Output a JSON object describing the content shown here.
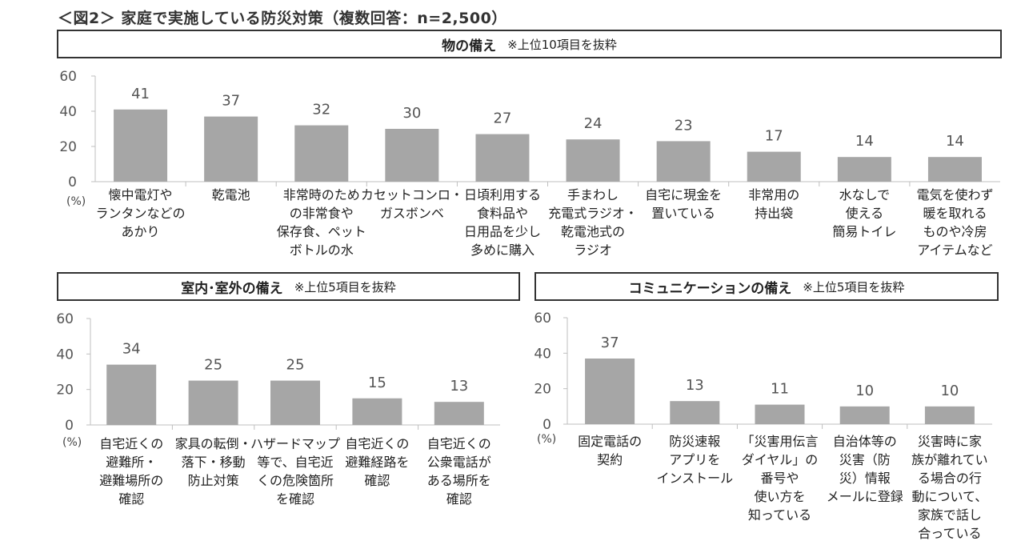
{
  "figure": {
    "title": "＜図2＞ 家庭で実施している防災対策（複数回答：n=2,500）"
  },
  "panels": {
    "main": {
      "title": "物の備え",
      "note": "※上位10項目を抜粋"
    },
    "left": {
      "title": "室内･室外の備え",
      "note": "※上位5項目を抜粋"
    },
    "right": {
      "title": "コミュニケーションの備え",
      "note": "※上位5項目を抜粋"
    }
  },
  "chart_data": [
    {
      "type": "bar",
      "title": "物の備え",
      "unit": "(%)",
      "ylim": [
        0,
        60
      ],
      "yticks": [
        0,
        20,
        40,
        60
      ],
      "categories": [
        [
          "懐中電灯や",
          "ランタンなどの",
          "あかり"
        ],
        [
          "乾電池"
        ],
        [
          "非常時のため",
          "の非常食や",
          "保存食、ペット",
          "ボトルの水"
        ],
        [
          "カセットコンロ・",
          "ガスボンベ"
        ],
        [
          "日頃利用する",
          "食料品や",
          "日用品を少し",
          "多めに購入"
        ],
        [
          "手まわし",
          "充電式ラジオ・",
          "乾電池式の",
          "ラジオ"
        ],
        [
          "自宅に現金を",
          "置いている"
        ],
        [
          "非常用の",
          "持出袋"
        ],
        [
          "水なしで",
          "使える",
          "簡易トイレ"
        ],
        [
          "電気を使わず",
          "暖を取れる",
          "ものや冷房",
          "アイテムなど"
        ]
      ],
      "values": [
        41,
        37,
        32,
        30,
        27,
        24,
        23,
        17,
        14,
        14
      ],
      "bar_color": "#a6a6a6"
    },
    {
      "type": "bar",
      "title": "室内･室外の備え",
      "unit": "(%)",
      "ylim": [
        0,
        60
      ],
      "yticks": [
        0,
        20,
        40,
        60
      ],
      "categories": [
        [
          "自宅近くの",
          "避難所・",
          "避難場所の",
          "確認"
        ],
        [
          "家具の転倒・",
          "落下・移動",
          "防止対策"
        ],
        [
          "ハザードマップ",
          "等で、自宅近",
          "くの危険箇所",
          "を確認"
        ],
        [
          "自宅近くの",
          "避難経路を",
          "確認"
        ],
        [
          "自宅近くの",
          "公衆電話が",
          "ある場所を",
          "確認"
        ]
      ],
      "values": [
        34,
        25,
        25,
        15,
        13
      ],
      "bar_color": "#a6a6a6"
    },
    {
      "type": "bar",
      "title": "コミュニケーションの備え",
      "unit": "(%)",
      "ylim": [
        0,
        60
      ],
      "yticks": [
        0,
        20,
        40,
        60
      ],
      "categories": [
        [
          "固定電話の",
          "契約"
        ],
        [
          "防災速報",
          "アプリを",
          "インストール"
        ],
        [
          "「災害用伝言",
          "ダイヤル」の",
          "番号や",
          "使い方を",
          "知っている"
        ],
        [
          "自治体等の",
          "災害（防",
          "災）情報",
          "メールに登録"
        ],
        [
          "災害時に家",
          "族が離れてい",
          "る場合の行",
          "動について、",
          "家族で話し",
          "合っている"
        ]
      ],
      "values": [
        37,
        13,
        11,
        10,
        10
      ],
      "bar_color": "#a6a6a6"
    }
  ]
}
